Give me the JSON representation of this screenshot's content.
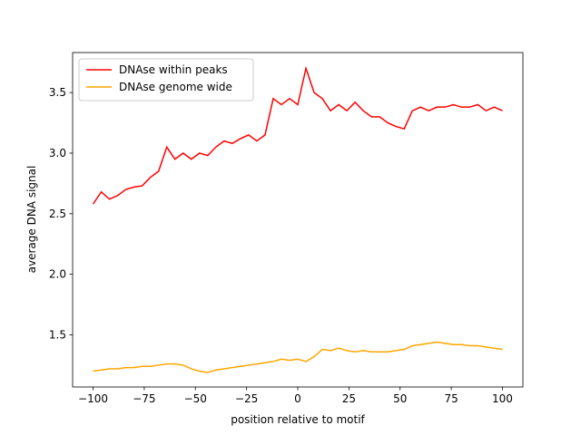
{
  "chart_data": {
    "type": "line",
    "x_label": "position relative to motif",
    "y_label": "average DNA signal",
    "x": [
      -100,
      -96,
      -92,
      -88,
      -84,
      -80,
      -76,
      -72,
      -68,
      -64,
      -60,
      -56,
      -52,
      -48,
      -44,
      -40,
      -36,
      -32,
      -28,
      -24,
      -20,
      -16,
      -12,
      -8,
      -4,
      0,
      4,
      8,
      12,
      16,
      20,
      24,
      28,
      32,
      36,
      40,
      44,
      48,
      52,
      56,
      60,
      64,
      68,
      72,
      76,
      80,
      84,
      88,
      92,
      96,
      100
    ],
    "series": [
      {
        "name": "DNAse within peaks",
        "color": "#ff0000",
        "values": [
          2.58,
          2.68,
          2.62,
          2.65,
          2.7,
          2.72,
          2.73,
          2.8,
          2.85,
          3.05,
          2.95,
          3.0,
          2.95,
          3.0,
          2.98,
          3.05,
          3.1,
          3.08,
          3.12,
          3.15,
          3.1,
          3.15,
          3.45,
          3.4,
          3.45,
          3.4,
          3.7,
          3.5,
          3.45,
          3.35,
          3.4,
          3.35,
          3.42,
          3.35,
          3.3,
          3.3,
          3.25,
          3.22,
          3.2,
          3.35,
          3.38,
          3.35,
          3.38,
          3.38,
          3.4,
          3.38,
          3.38,
          3.4,
          3.35,
          3.38,
          3.35
        ]
      },
      {
        "name": "DNAse genome wide",
        "color": "#ffa500",
        "values": [
          1.2,
          1.21,
          1.22,
          1.22,
          1.23,
          1.23,
          1.24,
          1.24,
          1.25,
          1.26,
          1.26,
          1.25,
          1.22,
          1.2,
          1.19,
          1.21,
          1.22,
          1.23,
          1.24,
          1.25,
          1.26,
          1.27,
          1.28,
          1.3,
          1.29,
          1.3,
          1.28,
          1.32,
          1.38,
          1.37,
          1.39,
          1.37,
          1.36,
          1.37,
          1.36,
          1.36,
          1.36,
          1.37,
          1.38,
          1.41,
          1.42,
          1.43,
          1.44,
          1.43,
          1.42,
          1.42,
          1.41,
          1.41,
          1.4,
          1.39,
          1.38
        ]
      }
    ],
    "xlim": [
      -110,
      110
    ],
    "ylim": [
      1.07,
      3.83
    ],
    "xticks": [
      {
        "value": -100,
        "label": "−100"
      },
      {
        "value": -75,
        "label": "−75"
      },
      {
        "value": -50,
        "label": "−50"
      },
      {
        "value": -25,
        "label": "−25"
      },
      0,
      25,
      50,
      75,
      100
    ],
    "yticks": [
      1.5,
      {
        "value": 2,
        "label": "2.0"
      },
      2.5,
      {
        "value": 3,
        "label": "3.0"
      },
      3.5
    ],
    "legend": "upper left"
  }
}
